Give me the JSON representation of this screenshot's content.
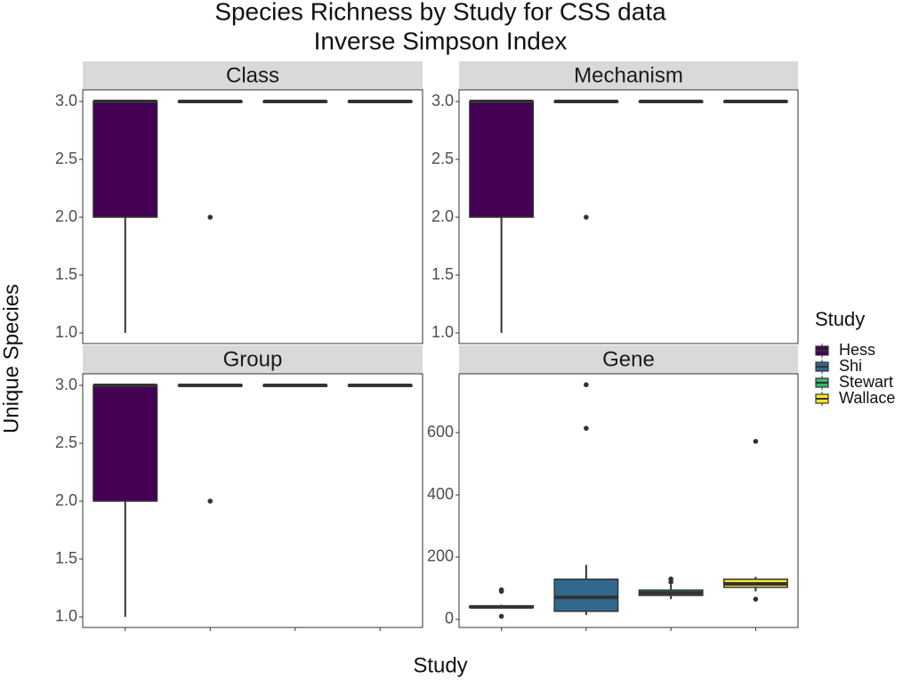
{
  "title": "Species Richness by Study for CSS data",
  "subtitle": "Inverse Simpson Index",
  "x_label": "Study",
  "y_label": "Unique Species",
  "legend_title": "Study",
  "chart_data": [
    {
      "type": "box",
      "panel": "Class",
      "ylim": [
        0.908,
        3.1
      ],
      "yticks": [
        {
          "value": 1,
          "label": "1.0"
        },
        {
          "value": 1.5,
          "label": "1.5"
        },
        {
          "value": 2,
          "label": "2.0"
        },
        {
          "value": 2.5,
          "label": "2.5"
        },
        {
          "value": 3,
          "label": "3.0"
        }
      ],
      "series": [
        {
          "name": "Hess",
          "color": "#440154",
          "low": 1,
          "q1": 2,
          "median": 3,
          "q3": 3,
          "high": 3,
          "outliers": []
        },
        {
          "name": "Shi",
          "color": "#31688e",
          "low": 3,
          "q1": 3,
          "median": 3,
          "q3": 3,
          "high": 3,
          "outliers": [
            2
          ]
        },
        {
          "name": "Stewart",
          "color": "#35b779",
          "low": 3,
          "q1": 3,
          "median": 3,
          "q3": 3,
          "high": 3,
          "outliers": []
        },
        {
          "name": "Wallace",
          "color": "#fde725",
          "low": 3,
          "q1": 3,
          "median": 3,
          "q3": 3,
          "high": 3,
          "outliers": []
        }
      ]
    },
    {
      "type": "box",
      "panel": "Mechanism",
      "ylim": [
        0.908,
        3.1
      ],
      "yticks": [
        {
          "value": 1,
          "label": "1.0"
        },
        {
          "value": 1.5,
          "label": "1.5"
        },
        {
          "value": 2,
          "label": "2.0"
        },
        {
          "value": 2.5,
          "label": "2.5"
        },
        {
          "value": 3,
          "label": "3.0"
        }
      ],
      "series": [
        {
          "name": "Hess",
          "color": "#440154",
          "low": 1,
          "q1": 2,
          "median": 3,
          "q3": 3,
          "high": 3,
          "outliers": []
        },
        {
          "name": "Shi",
          "color": "#31688e",
          "low": 3,
          "q1": 3,
          "median": 3,
          "q3": 3,
          "high": 3,
          "outliers": [
            2
          ]
        },
        {
          "name": "Stewart",
          "color": "#35b779",
          "low": 3,
          "q1": 3,
          "median": 3,
          "q3": 3,
          "high": 3,
          "outliers": []
        },
        {
          "name": "Wallace",
          "color": "#fde725",
          "low": 3,
          "q1": 3,
          "median": 3,
          "q3": 3,
          "high": 3,
          "outliers": []
        }
      ]
    },
    {
      "type": "box",
      "panel": "Group",
      "ylim": [
        0.908,
        3.1
      ],
      "yticks": [
        {
          "value": 1,
          "label": "1.0"
        },
        {
          "value": 1.5,
          "label": "1.5"
        },
        {
          "value": 2,
          "label": "2.0"
        },
        {
          "value": 2.5,
          "label": "2.5"
        },
        {
          "value": 3,
          "label": "3.0"
        }
      ],
      "series": [
        {
          "name": "Hess",
          "color": "#440154",
          "low": 1,
          "q1": 2,
          "median": 3,
          "q3": 3,
          "high": 3,
          "outliers": []
        },
        {
          "name": "Shi",
          "color": "#31688e",
          "low": 3,
          "q1": 3,
          "median": 3,
          "q3": 3,
          "high": 3,
          "outliers": [
            2
          ]
        },
        {
          "name": "Stewart",
          "color": "#35b779",
          "low": 3,
          "q1": 3,
          "median": 3,
          "q3": 3,
          "high": 3,
          "outliers": []
        },
        {
          "name": "Wallace",
          "color": "#fde725",
          "low": 3,
          "q1": 3,
          "median": 3,
          "q3": 3,
          "high": 3,
          "outliers": []
        }
      ]
    },
    {
      "type": "box",
      "panel": "Gene",
      "ylim": [
        -26,
        789
      ],
      "yticks": [
        0,
        200,
        400,
        600
      ],
      "series": [
        {
          "name": "Hess",
          "color": "#440154",
          "low": 35,
          "q1": 38,
          "median": 40,
          "q3": 43,
          "high": 47,
          "outliers": [
            10,
            90,
            95
          ]
        },
        {
          "name": "Shi",
          "color": "#31688e",
          "low": 14,
          "q1": 26,
          "median": 71,
          "q3": 129,
          "high": 175,
          "outliers": [
            614,
            754
          ]
        },
        {
          "name": "Stewart",
          "color": "#35b779",
          "low": 65,
          "q1": 77,
          "median": 85,
          "q3": 94,
          "high": 112,
          "outliers": [
            120,
            130
          ]
        },
        {
          "name": "Wallace",
          "color": "#fde725",
          "low": 90,
          "q1": 103,
          "median": 114,
          "q3": 129,
          "high": 137,
          "outliers": [
            65,
            572
          ]
        }
      ]
    }
  ]
}
